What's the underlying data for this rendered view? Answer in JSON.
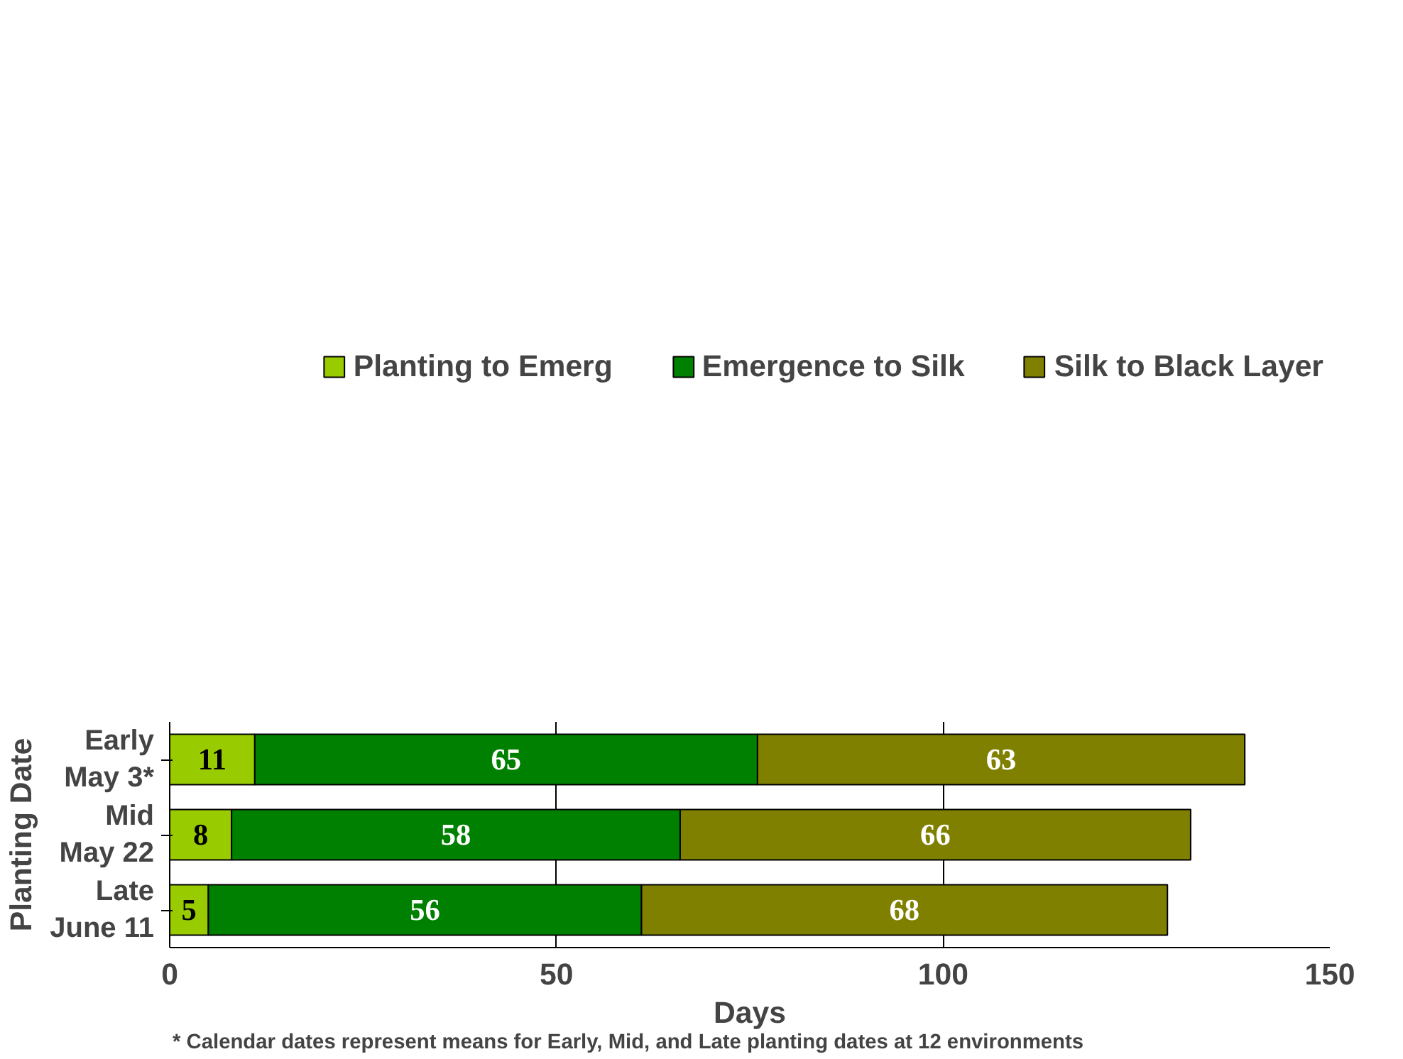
{
  "chart_data": {
    "type": "bar",
    "orientation": "horizontal",
    "stacked": true,
    "categories": [
      "Early\nMay 3*",
      "Mid\nMay 22",
      "Late\nJune 11"
    ],
    "series": [
      {
        "name": "Planting to Emerg",
        "color": "#99cc00",
        "values": [
          11,
          8,
          5
        ]
      },
      {
        "name": "Emergence to Silk",
        "color": "#008000",
        "values": [
          65,
          58,
          56
        ]
      },
      {
        "name": "Silk to Black Layer",
        "color": "#808000",
        "values": [
          63,
          66,
          68
        ]
      }
    ],
    "xlabel": "Days",
    "ylabel": "Planting Date",
    "xlim": [
      0,
      150
    ],
    "xticks": [
      0,
      50,
      100,
      150
    ],
    "grid": "x",
    "legend": "top",
    "data_labels": true,
    "annotations": [
      "* Calendar dates represent means for Early, Mid, and Late planting dates at 12 environments"
    ]
  }
}
